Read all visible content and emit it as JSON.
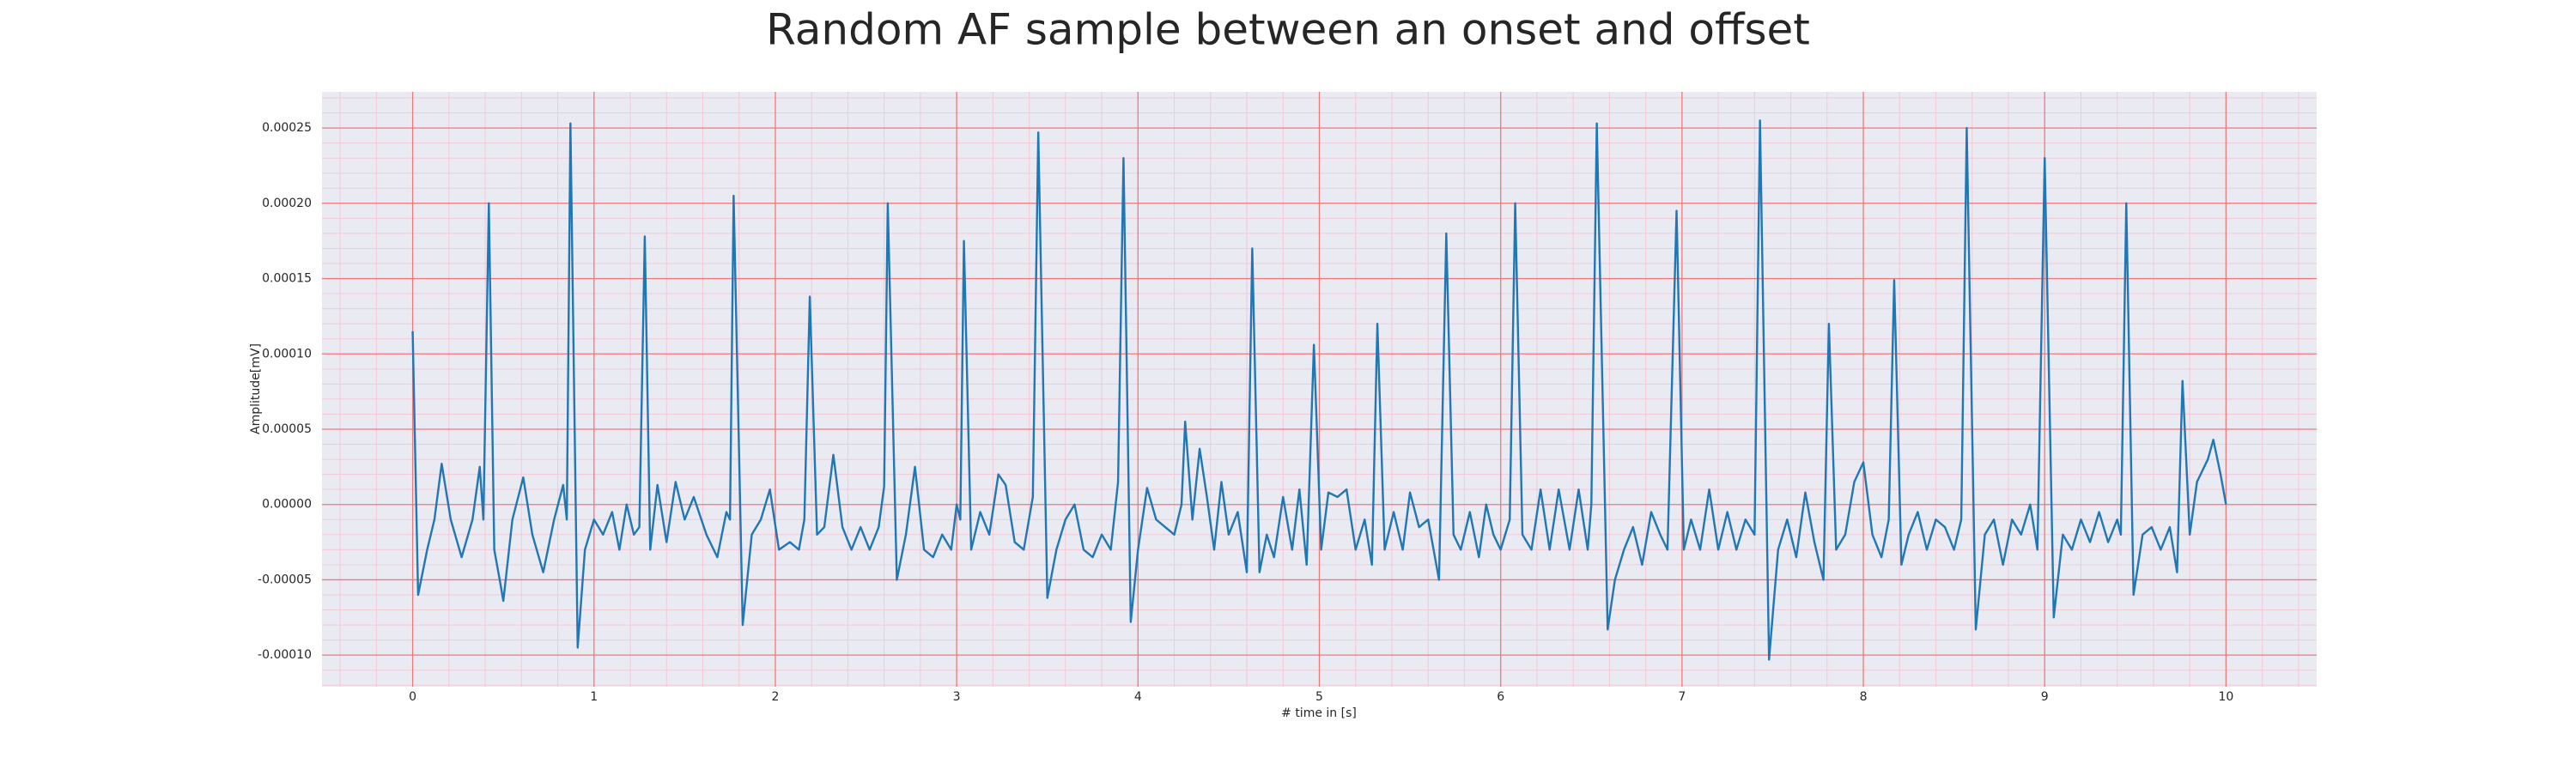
{
  "chart_data": {
    "type": "line",
    "title": "Random AF sample between an onset and offset",
    "x_label": "# time in [s]",
    "y_label": "Amplitude[mV]",
    "color": "#1f77b4",
    "background": "#eaeaf2",
    "grid": true,
    "grid_color": "#f07a7a",
    "minor_grid": true,
    "minor_grid_color": "#f3c9d6",
    "xlim": [
      -0.5,
      10.5
    ],
    "ylim": [
      -0.000121,
      0.000274
    ],
    "xticks": [
      0,
      1,
      2,
      3,
      4,
      5,
      6,
      7,
      8,
      9,
      10
    ],
    "yticks": [
      {
        "value": -0.0001,
        "label": "-0.00010"
      },
      {
        "value": -5e-05,
        "label": "-0.00005"
      },
      {
        "value": 0,
        "label": "0.00000"
      },
      {
        "value": 5e-05,
        "label": "0.00005"
      },
      {
        "value": 0.0001,
        "label": "0.00010"
      },
      {
        "value": 0.00015,
        "label": "0.00015"
      },
      {
        "value": 0.0002,
        "label": "0.00020"
      },
      {
        "value": 0.00025,
        "label": "0.00025"
      }
    ],
    "x": [
      0.0,
      0.03,
      0.08,
      0.12,
      0.16,
      0.21,
      0.27,
      0.33,
      0.37,
      0.39,
      0.42,
      0.45,
      0.48,
      0.5,
      0.55,
      0.61,
      0.66,
      0.72,
      0.78,
      0.83,
      0.85,
      0.87,
      0.91,
      0.95,
      1.0,
      1.05,
      1.1,
      1.14,
      1.18,
      1.22,
      1.25,
      1.28,
      1.31,
      1.35,
      1.4,
      1.45,
      1.5,
      1.55,
      1.62,
      1.68,
      1.73,
      1.75,
      1.77,
      1.82,
      1.87,
      1.92,
      1.97,
      2.02,
      2.08,
      2.13,
      2.16,
      2.19,
      2.23,
      2.27,
      2.32,
      2.37,
      2.42,
      2.47,
      2.52,
      2.57,
      2.6,
      2.62,
      2.67,
      2.72,
      2.77,
      2.82,
      2.87,
      2.92,
      2.97,
      3.0,
      3.02,
      3.04,
      3.08,
      3.13,
      3.18,
      3.23,
      3.27,
      3.32,
      3.37,
      3.42,
      3.45,
      3.5,
      3.55,
      3.6,
      3.65,
      3.7,
      3.75,
      3.8,
      3.85,
      3.89,
      3.92,
      3.96,
      4.0,
      4.05,
      4.1,
      4.15,
      4.2,
      4.24,
      4.26,
      4.3,
      4.34,
      4.38,
      4.42,
      4.46,
      4.5,
      4.55,
      4.6,
      4.63,
      4.67,
      4.71,
      4.75,
      4.8,
      4.85,
      4.89,
      4.93,
      4.97,
      5.01,
      5.05,
      5.1,
      5.15,
      5.2,
      5.25,
      5.29,
      5.32,
      5.36,
      5.41,
      5.46,
      5.5,
      5.55,
      5.6,
      5.66,
      5.7,
      5.74,
      5.78,
      5.83,
      5.88,
      5.92,
      5.96,
      6.0,
      6.05,
      6.08,
      6.12,
      6.17,
      6.22,
      6.27,
      6.32,
      6.38,
      6.43,
      6.48,
      6.5,
      6.53,
      6.59,
      6.63,
      6.68,
      6.73,
      6.78,
      6.83,
      6.88,
      6.92,
      6.97,
      7.01,
      7.05,
      7.1,
      7.15,
      7.2,
      7.25,
      7.3,
      7.35,
      7.4,
      7.43,
      7.48,
      7.53,
      7.58,
      7.63,
      7.68,
      7.73,
      7.78,
      7.81,
      7.85,
      7.9,
      7.95,
      8.0,
      8.05,
      8.1,
      8.14,
      8.17,
      8.21,
      8.25,
      8.3,
      8.35,
      8.4,
      8.45,
      8.5,
      8.54,
      8.57,
      8.62,
      8.67,
      8.72,
      8.77,
      8.82,
      8.87,
      8.92,
      8.96,
      9.0,
      9.05,
      9.1,
      9.15,
      9.2,
      9.25,
      9.3,
      9.35,
      9.4,
      9.42,
      9.45,
      9.49,
      9.54,
      9.59,
      9.64,
      9.69,
      9.73,
      9.76,
      9.8,
      9.84,
      9.9,
      9.93,
      9.97,
      10.0
    ],
    "values": [
      0.000115,
      -6e-05,
      -3e-05,
      -1e-05,
      2.7e-05,
      -1e-05,
      -3.5e-05,
      -1e-05,
      2.5e-05,
      -1e-05,
      0.0002,
      -3e-05,
      -5e-05,
      -6.4e-05,
      -1e-05,
      1.8e-05,
      -2e-05,
      -4.5e-05,
      -1e-05,
      1.3e-05,
      -1e-05,
      0.000253,
      -9.5e-05,
      -3e-05,
      -1e-05,
      -2e-05,
      -5e-06,
      -3e-05,
      0,
      -2e-05,
      -1.5e-05,
      0.000178,
      -3e-05,
      1.3e-05,
      -2.5e-05,
      1.5e-05,
      -1e-05,
      5e-06,
      -2e-05,
      -3.5e-05,
      -5e-06,
      -1e-05,
      0.000205,
      -8e-05,
      -2e-05,
      -1e-05,
      1e-05,
      -3e-05,
      -2.5e-05,
      -3e-05,
      -1e-05,
      0.000138,
      -2e-05,
      -1.5e-05,
      3.3e-05,
      -1.5e-05,
      -3e-05,
      -1.5e-05,
      -3e-05,
      -1.5e-05,
      1.2e-05,
      0.0002,
      -5e-05,
      -2e-05,
      2.5e-05,
      -3e-05,
      -3.5e-05,
      -2e-05,
      -3e-05,
      0,
      -1e-05,
      0.000175,
      -3e-05,
      -5e-06,
      -2e-05,
      2e-05,
      1.3e-05,
      -2.5e-05,
      -3e-05,
      5e-06,
      0.000247,
      -6.2e-05,
      -3e-05,
      -1e-05,
      0,
      -3e-05,
      -3.5e-05,
      -2e-05,
      -3e-05,
      1.5e-05,
      0.00023,
      -7.8e-05,
      -3e-05,
      1.1e-05,
      -1e-05,
      -1.5e-05,
      -2e-05,
      0,
      5.5e-05,
      -1e-05,
      3.7e-05,
      5e-06,
      -3e-05,
      1.5e-05,
      -2e-05,
      -5e-06,
      -4.5e-05,
      0.00017,
      -4.5e-05,
      -2e-05,
      -3.5e-05,
      5e-06,
      -3e-05,
      1e-05,
      -4e-05,
      0.000106,
      -3e-05,
      8e-06,
      5e-06,
      1e-05,
      -3e-05,
      -1e-05,
      -4e-05,
      0.00012,
      -3e-05,
      -5e-06,
      -3e-05,
      8e-06,
      -1.5e-05,
      -1e-05,
      -5e-05,
      0.00018,
      -2e-05,
      -3e-05,
      -5e-06,
      -3.5e-05,
      0,
      -2e-05,
      -3e-05,
      -1e-05,
      0.0002,
      -2e-05,
      -3e-05,
      1e-05,
      -3e-05,
      1e-05,
      -3e-05,
      1e-05,
      -3e-05,
      0,
      0.000253,
      -8.3e-05,
      -5e-05,
      -3e-05,
      -1.5e-05,
      -4e-05,
      -5e-06,
      -2e-05,
      -3e-05,
      0.000195,
      -3e-05,
      -1e-05,
      -3e-05,
      1e-05,
      -3e-05,
      -5e-06,
      -3e-05,
      -1e-05,
      -2e-05,
      0.000255,
      -0.000103,
      -3e-05,
      -1e-05,
      -3.5e-05,
      8e-06,
      -2.5e-05,
      -5e-05,
      0.00012,
      -3e-05,
      -2e-05,
      1.5e-05,
      2.8e-05,
      -2e-05,
      -3.5e-05,
      -1e-05,
      0.000149,
      -4e-05,
      -2e-05,
      -5e-06,
      -3e-05,
      -1e-05,
      -1.5e-05,
      -3e-05,
      -1e-05,
      0.00025,
      -8.3e-05,
      -2e-05,
      -1e-05,
      -4e-05,
      -1e-05,
      -2e-05,
      0,
      -3e-05,
      0.00023,
      -7.5e-05,
      -2e-05,
      -3e-05,
      -1e-05,
      -2.5e-05,
      -5e-06,
      -2.5e-05,
      -1e-05,
      -2e-05,
      0.0002,
      -6e-05,
      -2e-05,
      -1.5e-05,
      -3e-05,
      -1.5e-05,
      -4.5e-05,
      8.2e-05,
      -2e-05,
      1.5e-05,
      3e-05,
      4.3e-05,
      2e-05,
      0
    ]
  }
}
